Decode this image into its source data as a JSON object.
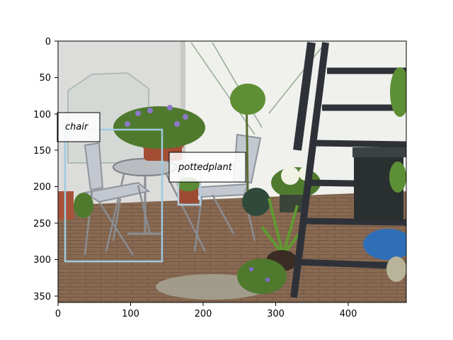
{
  "axes": {
    "x_ticks": [
      "0",
      "100",
      "200",
      "300",
      "400"
    ],
    "y_ticks": [
      "0",
      "50",
      "100",
      "150",
      "200",
      "250",
      "300",
      "350"
    ]
  },
  "image": {
    "description_tag": "garden-patio-photo",
    "colors": {
      "wall": "#e9e9e6",
      "ground": "#8a6a52",
      "foliage": "#4f7a2e",
      "stairs": "#2e3238",
      "box_chair": "#9ecae1",
      "box_pottedplant": "#b3cde3"
    }
  },
  "detections": [
    {
      "label": "chair"
    },
    {
      "label": "pottedplant"
    }
  ]
}
